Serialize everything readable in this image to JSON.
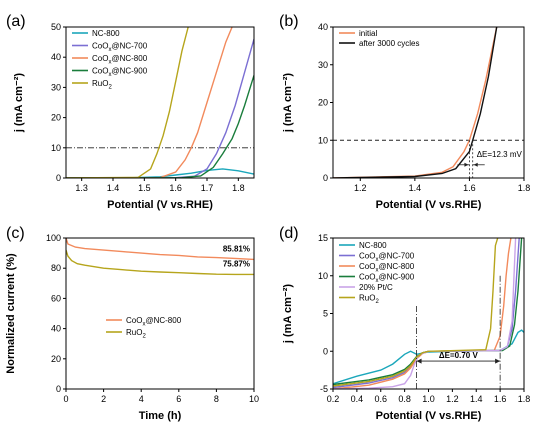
{
  "chart_data": [
    {
      "panel": "(a)",
      "type": "line",
      "xlabel": "Potential (V vs.RHE)",
      "ylabel": "j (mA cm⁻²)",
      "xlim": [
        1.25,
        1.85
      ],
      "ylim": [
        0,
        50
      ],
      "xticks": [
        "1.3",
        "1.4",
        "1.5",
        "1.6",
        "1.7",
        "1.8"
      ],
      "yticks": [
        "0",
        "10",
        "20",
        "30",
        "40",
        "50"
      ],
      "reference_line_y": 10,
      "legend_position": "top-left",
      "series": [
        {
          "name": "NC-800",
          "legend": [
            "NC-800"
          ],
          "color": "#1ba7bb",
          "x": [
            1.25,
            1.45,
            1.55,
            1.6,
            1.65,
            1.7,
            1.75,
            1.8,
            1.85
          ],
          "y": [
            0,
            0.05,
            0.4,
            1.0,
            1.6,
            2.5,
            3.0,
            2.4,
            1.3
          ]
        },
        {
          "name": "CoOx@NC-700",
          "legend": [
            "CoO",
            "x",
            "@NC-700"
          ],
          "color": "#7b6fd3",
          "x": [
            1.25,
            1.6,
            1.66,
            1.7,
            1.73,
            1.76,
            1.79,
            1.82,
            1.85
          ],
          "y": [
            0,
            0.1,
            0.6,
            3.0,
            8.0,
            15.0,
            24.0,
            35.0,
            46.0
          ]
        },
        {
          "name": "CoOx@NC-800",
          "legend": [
            "CoO",
            "x",
            "@NC-800"
          ],
          "color": "#f28a5c",
          "x": [
            1.25,
            1.55,
            1.6,
            1.63,
            1.65,
            1.67,
            1.7,
            1.73,
            1.76,
            1.78
          ],
          "y": [
            0,
            0.1,
            2.0,
            6.0,
            10.0,
            15.0,
            25.0,
            35.0,
            45.0,
            50.0
          ]
        },
        {
          "name": "CoOx@NC-900",
          "legend": [
            "CoO",
            "x",
            "@NC-900"
          ],
          "color": "#1a7d3c",
          "x": [
            1.25,
            1.62,
            1.68,
            1.72,
            1.75,
            1.78,
            1.8,
            1.82,
            1.85
          ],
          "y": [
            0,
            0.1,
            0.7,
            3.5,
            8.0,
            13.0,
            18.0,
            24.0,
            34.0
          ]
        },
        {
          "name": "RuO2",
          "legend": [
            "RuO",
            "2",
            ""
          ],
          "color": "#b6a51c",
          "x": [
            1.25,
            1.48,
            1.52,
            1.54,
            1.56,
            1.58,
            1.6,
            1.62,
            1.64
          ],
          "y": [
            0,
            0.2,
            3.0,
            8.0,
            14.0,
            22.0,
            32.0,
            42.0,
            50.0
          ]
        }
      ]
    },
    {
      "panel": "(b)",
      "type": "line",
      "xlabel": "Potential (V vs.RHE)",
      "ylabel": "j (mA cm⁻²)",
      "xlim": [
        1.1,
        1.8
      ],
      "ylim": [
        0,
        40
      ],
      "xticks": [
        "1.2",
        "1.4",
        "1.6",
        "1.8"
      ],
      "yticks": [
        "0",
        "10",
        "20",
        "30",
        "40"
      ],
      "reference_line_y": 10,
      "annotation": "ΔE=12.3 mV",
      "legend_position": "top-left",
      "series": [
        {
          "name": "initial",
          "color": "#f28a5c",
          "x": [
            1.1,
            1.4,
            1.5,
            1.54,
            1.58,
            1.6,
            1.63,
            1.66,
            1.7
          ],
          "y": [
            0,
            0.5,
            1.5,
            3.0,
            7.0,
            10.0,
            17.0,
            26.0,
            40.0
          ]
        },
        {
          "name": "after 3000 cycles",
          "color": "#111111",
          "x": [
            1.1,
            1.4,
            1.5,
            1.55,
            1.6,
            1.612,
            1.64,
            1.67,
            1.7
          ],
          "y": [
            0,
            0.4,
            1.2,
            2.5,
            7.0,
            10.0,
            17.0,
            27.0,
            40.0
          ]
        }
      ]
    },
    {
      "panel": "(c)",
      "type": "line",
      "xlabel": "Time (h)",
      "ylabel": "Normalized current (%)",
      "xlim": [
        0,
        10
      ],
      "ylim": [
        0,
        100
      ],
      "xticks": [
        "0",
        "2",
        "4",
        "6",
        "8",
        "10"
      ],
      "yticks": [
        "0",
        "20",
        "40",
        "60",
        "80",
        "100"
      ],
      "legend_position": "center",
      "end_labels": [
        {
          "text": "85.81%",
          "color": "#f28a5c",
          "value": 85.81
        },
        {
          "text": "75.87%",
          "color": "#b6a51c",
          "value": 75.87
        }
      ],
      "series": [
        {
          "name": "CoOx@NC-800",
          "legend": [
            "CoO",
            "x",
            "@NC-800"
          ],
          "color": "#f28a5c",
          "x": [
            0,
            0.1,
            0.5,
            1,
            2,
            3,
            4,
            5,
            6,
            7,
            8,
            9,
            10
          ],
          "y": [
            100,
            96,
            94,
            93,
            92,
            91,
            90,
            89,
            88.5,
            87.5,
            87,
            86.5,
            85.81
          ]
        },
        {
          "name": "RuO2",
          "legend": [
            "RuO",
            "2",
            ""
          ],
          "color": "#b6a51c",
          "x": [
            0,
            0.1,
            0.3,
            0.6,
            1,
            2,
            3,
            4,
            5,
            6,
            7,
            8,
            9,
            10
          ],
          "y": [
            92,
            88,
            85,
            83,
            82,
            80,
            79,
            78,
            77.5,
            77,
            76.5,
            76,
            75.9,
            75.87
          ]
        }
      ]
    },
    {
      "panel": "(d)",
      "type": "line",
      "xlabel": "Potential (V vs.RHE)",
      "ylabel": "j (mA cm⁻²)",
      "xlim": [
        0.2,
        1.8
      ],
      "ylim": [
        -5,
        15
      ],
      "xticks": [
        "0.2",
        "0.4",
        "0.6",
        "0.8",
        "1.0",
        "1.2",
        "1.4",
        "1.6",
        "1.8"
      ],
      "yticks": [
        "-5",
        "0",
        "5",
        "10",
        "15"
      ],
      "annotation": "ΔE=0.70 V",
      "legend_position": "top-left",
      "series": [
        {
          "name": "NC-800",
          "legend": [
            "NC-800"
          ],
          "color": "#1ba7bb",
          "x": [
            0.2,
            0.4,
            0.6,
            0.7,
            0.8,
            0.85,
            0.9,
            1.0,
            1.2,
            1.6,
            1.7,
            1.75,
            1.78,
            1.8
          ],
          "y": [
            -4.3,
            -3.3,
            -2.5,
            -1.7,
            -0.4,
            0.0,
            -0.4,
            -0.1,
            0.0,
            0.1,
            1.0,
            2.5,
            2.8,
            2.5
          ]
        },
        {
          "name": "CoOx@NC-700",
          "legend": [
            "CoO",
            "x",
            "@NC-700"
          ],
          "color": "#7b6fd3",
          "x": [
            0.2,
            0.5,
            0.7,
            0.8,
            0.85,
            0.9,
            0.95,
            1.0,
            1.6,
            1.66,
            1.7,
            1.73,
            1.76
          ],
          "y": [
            -4.8,
            -4.2,
            -3.5,
            -2.8,
            -2.0,
            -0.8,
            -0.2,
            0.0,
            0.1,
            0.6,
            3.0,
            8.0,
            15.0
          ]
        },
        {
          "name": "CoOx@NC-800",
          "legend": [
            "CoO",
            "x",
            "@NC-800"
          ],
          "color": "#f28a5c",
          "x": [
            0.2,
            0.5,
            0.7,
            0.8,
            0.85,
            0.9,
            0.95,
            1.0,
            1.55,
            1.6,
            1.63,
            1.65,
            1.67,
            1.69
          ],
          "y": [
            -5.0,
            -4.5,
            -3.7,
            -3.0,
            -2.2,
            -1.0,
            -0.3,
            0.0,
            0.1,
            2.0,
            6.0,
            10.0,
            13.0,
            15.0
          ]
        },
        {
          "name": "CoOx@NC-900",
          "legend": [
            "CoO",
            "x",
            "@NC-900"
          ],
          "color": "#1a7d3c",
          "x": [
            0.2,
            0.5,
            0.7,
            0.8,
            0.85,
            0.9,
            0.95,
            1.0,
            1.62,
            1.68,
            1.72,
            1.75,
            1.78
          ],
          "y": [
            -4.4,
            -3.8,
            -3.1,
            -2.4,
            -1.7,
            -0.7,
            -0.2,
            0.0,
            0.1,
            0.7,
            3.5,
            8.0,
            15.0
          ]
        },
        {
          "name": "20% Pt/C",
          "legend": [
            "20% Pt/C"
          ],
          "color": "#c9a3e8",
          "x": [
            0.2,
            0.5,
            0.7,
            0.8,
            0.85,
            0.88,
            0.92,
            1.0,
            1.6,
            1.66,
            1.7,
            1.73
          ],
          "y": [
            -5.0,
            -4.9,
            -4.7,
            -4.3,
            -3.2,
            -1.8,
            -0.5,
            0.0,
            0.1,
            0.6,
            4.0,
            15.0
          ]
        },
        {
          "name": "RuO2",
          "legend": [
            "RuO",
            "2",
            ""
          ],
          "color": "#b6a51c",
          "x": [
            0.2,
            0.5,
            0.7,
            0.8,
            0.85,
            0.9,
            0.95,
            1.0,
            1.48,
            1.52,
            1.54,
            1.56,
            1.58
          ],
          "y": [
            -4.6,
            -4.0,
            -3.3,
            -2.6,
            -1.9,
            -0.8,
            -0.2,
            0.0,
            0.2,
            3.0,
            8.0,
            14.0,
            15.0
          ]
        }
      ]
    }
  ]
}
